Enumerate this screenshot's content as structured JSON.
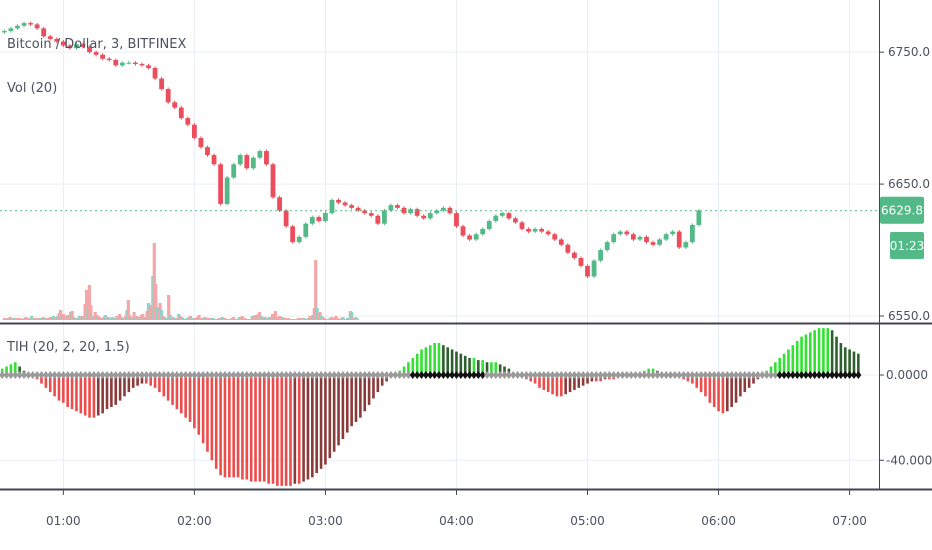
{
  "colors": {
    "up": "#53b987",
    "down": "#eb4d5c",
    "vol_up": "#8fd3c8",
    "vol_down": "#f4a7a7",
    "last_price_tag": "#53b987",
    "osc_pos_strong": "#32e132",
    "osc_pos_weak": "#2f5f2f",
    "osc_neg_strong": "#ee4b4b",
    "osc_neg_weak": "#8b3a3a",
    "grid": "#e9eef3",
    "axis_text": "#4c525e"
  },
  "legend": {
    "symbol": "Bitcoin / Dollar, 3, BITFINEX",
    "volume": "Vol (20)",
    "indicator": "TIH (20, 2, 20, 1.5)"
  },
  "last_price_tag": {
    "price": "6629.8",
    "countdown": "01:23"
  },
  "chart_data": [
    {
      "type": "candlestick",
      "title": "",
      "y_ticks": [
        "6750.0",
        "6650.0",
        "6550.0"
      ],
      "ylim": [
        6547,
        6788
      ],
      "last_price": 6629.8,
      "x_ticks": [
        "01:00",
        "02:00",
        "03:00",
        "04:00",
        "05:00",
        "06:00",
        "07:00"
      ],
      "x_tick_times": [
        60,
        120,
        180,
        240,
        300,
        360,
        420
      ],
      "x_range": [
        31,
        433
      ],
      "bar_interval_minutes": 3,
      "series": [
        {
          "name": "close",
          "time_start": 33,
          "values": [
            6766,
            6768,
            6770,
            6772,
            6771,
            6768,
            6762,
            6760,
            6758,
            6755,
            6753,
            6756,
            6754,
            6750,
            6748,
            6745,
            6744,
            6740,
            6742,
            6742,
            6741,
            6740,
            6738,
            6730,
            6722,
            6712,
            6708,
            6700,
            6695,
            6685,
            6678,
            6672,
            6665,
            6635,
            6655,
            6665,
            6672,
            6662,
            6670,
            6675,
            6665,
            6640,
            6630,
            6618,
            6606,
            6610,
            6620,
            6625,
            6622,
            6628,
            6638,
            6636,
            6634,
            6632,
            6630,
            6628,
            6626,
            6620,
            6630,
            6634,
            6632,
            6628,
            6631,
            6626,
            6624,
            6628,
            6630,
            6632,
            6628,
            6618,
            6611,
            6608,
            6612,
            6616,
            6622,
            6626,
            6628,
            6624,
            6621,
            6616,
            6614,
            6616,
            6614,
            6612,
            6608,
            6604,
            6598,
            6594,
            6588,
            6580,
            6592,
            6600,
            6606,
            6612,
            6614,
            6612,
            6608,
            6610,
            6606,
            6604,
            6608,
            6612,
            6614,
            6602,
            6606,
            6619,
            6630
          ]
        },
        {
          "name": "volume",
          "time_start": 33,
          "values": [
            2,
            1,
            2,
            1,
            3,
            2,
            1,
            2,
            1,
            2,
            1,
            2,
            1,
            1,
            2,
            3,
            1,
            2,
            1,
            4,
            1,
            2,
            1,
            2,
            1,
            2,
            1,
            3,
            2,
            1,
            2,
            1,
            3,
            2,
            4,
            3,
            2,
            4,
            7,
            10,
            5,
            6,
            4,
            3,
            5,
            4,
            8,
            9,
            3,
            2,
            1,
            2,
            4,
            3,
            4,
            3,
            16,
            30,
            12,
            35,
            15,
            4,
            2,
            8,
            5,
            4,
            3,
            1,
            2,
            3,
            5,
            2,
            3,
            2,
            1,
            3,
            2,
            1,
            4,
            2,
            6,
            3,
            2,
            1,
            4,
            10,
            20,
            5,
            3,
            2,
            8,
            3,
            4,
            3,
            2,
            5,
            6,
            3,
            2,
            9,
            17,
            11,
            15,
            44,
            77,
            36,
            13,
            8,
            17,
            10,
            4,
            3,
            2,
            1,
            25,
            5,
            1,
            3,
            2,
            1,
            2,
            6,
            4,
            3,
            2,
            1,
            1,
            2,
            3,
            4,
            2,
            1,
            2,
            1,
            3,
            5,
            1,
            2,
            2,
            3,
            1,
            2,
            1,
            2,
            1,
            2,
            1,
            1,
            1,
            2,
            2,
            3,
            1,
            2,
            1,
            1,
            1,
            1,
            2,
            3,
            1,
            1,
            1,
            3,
            2,
            4,
            1,
            2,
            1,
            1,
            1,
            1,
            4,
            3,
            5,
            3,
            6,
            8,
            4,
            3,
            2,
            3,
            1,
            2,
            3,
            2,
            6,
            2,
            9,
            3,
            1,
            4,
            2,
            3,
            1,
            2,
            1,
            2,
            1,
            1,
            1,
            1,
            1,
            1,
            2,
            1,
            2,
            1,
            2,
            1,
            1,
            2,
            4,
            3,
            5,
            12,
            60,
            12,
            6,
            8,
            4,
            3,
            2,
            1,
            1,
            1,
            2,
            3,
            2,
            1,
            4,
            2,
            1,
            1,
            2,
            3,
            1,
            1,
            2,
            1,
            9,
            8,
            2,
            1,
            3,
            1
          ]
        }
      ]
    },
    {
      "type": "bar",
      "title": "",
      "y_ticks": [
        "0.0000",
        "-40.0000"
      ],
      "ylim": [
        -53,
        23
      ],
      "series": [
        {
          "name": "histogram",
          "time_start": 30,
          "values": [
            2,
            3,
            4,
            5,
            6,
            4,
            2,
            0,
            -1,
            -2,
            -4,
            -6,
            -8,
            -10,
            -12,
            -13,
            -15,
            -16,
            -17,
            -18,
            -19,
            -20,
            -20,
            -19,
            -18,
            -16,
            -15,
            -14,
            -12,
            -10,
            -8,
            -6,
            -5,
            -4,
            -4,
            -5,
            -6,
            -8,
            -10,
            -12,
            -14,
            -16,
            -18,
            -20,
            -22,
            -25,
            -28,
            -32,
            -36,
            -40,
            -44,
            -47,
            -48,
            -48,
            -48,
            -48,
            -49,
            -49,
            -50,
            -50,
            -50,
            -50,
            -51,
            -51,
            -52,
            -52,
            -52,
            -52,
            -51,
            -51,
            -50,
            -49,
            -48,
            -46,
            -44,
            -42,
            -39,
            -36,
            -33,
            -30,
            -27,
            -24,
            -22,
            -20,
            -17,
            -14,
            -11,
            -8,
            -5,
            -3,
            -1,
            0,
            2,
            4,
            6,
            8,
            10,
            12,
            13,
            14,
            15,
            15,
            14,
            13,
            12,
            11,
            10,
            9,
            8,
            8,
            7,
            7,
            6,
            6,
            6,
            5,
            4,
            3,
            1,
            0,
            -1,
            -2,
            -3,
            -4,
            -6,
            -7,
            -8,
            -9,
            -10,
            -10,
            -9,
            -8,
            -7,
            -6,
            -5,
            -4,
            -3,
            -3,
            -3,
            -2,
            -2,
            -2,
            -1,
            -1,
            -1,
            0,
            0,
            1,
            2,
            3,
            3,
            2,
            1,
            0,
            0,
            -1,
            -1,
            -2,
            -3,
            -4,
            -6,
            -8,
            -10,
            -13,
            -15,
            -17,
            -18,
            -17,
            -15,
            -13,
            -10,
            -8,
            -6,
            -4,
            -2,
            0,
            2,
            4,
            6,
            8,
            10,
            12,
            14,
            16,
            18,
            19,
            20,
            21,
            22,
            22,
            22,
            21,
            18,
            15,
            13,
            12,
            11,
            10
          ]
        }
      ]
    }
  ]
}
